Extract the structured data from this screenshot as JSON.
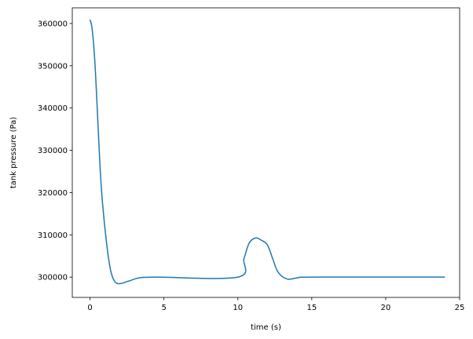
{
  "chart_data": {
    "type": "line",
    "title": "",
    "xlabel": "time (s)",
    "ylabel": "tank pressure (Pa)",
    "xlim": [
      -1.2,
      25.0
    ],
    "ylim": [
      295200,
      363700
    ],
    "xticks": [
      0,
      5,
      10,
      15,
      20,
      25
    ],
    "yticks": [
      300000,
      310000,
      320000,
      330000,
      340000,
      350000,
      360000
    ],
    "grid": false,
    "line_color": "#1f77b4",
    "series": [
      {
        "x": [
          0,
          0.14,
          0.32,
          0.5,
          0.67,
          0.85,
          1.12,
          1.38,
          1.65,
          2.0,
          2.62,
          3.33,
          4.5,
          10.0,
          10.41,
          10.76,
          11.2,
          11.6,
          12.0,
          12.36,
          12.71,
          13.33,
          14.1,
          15.2,
          24.0
        ],
        "y": [
          360900,
          358760,
          351340,
          338970,
          326600,
          317300,
          308030,
          301800,
          299070,
          298440,
          299070,
          299810,
          300000,
          300000,
          304320,
          308030,
          309270,
          308700,
          307600,
          304320,
          301220,
          299550,
          299870,
          300000,
          300000
        ]
      }
    ]
  }
}
